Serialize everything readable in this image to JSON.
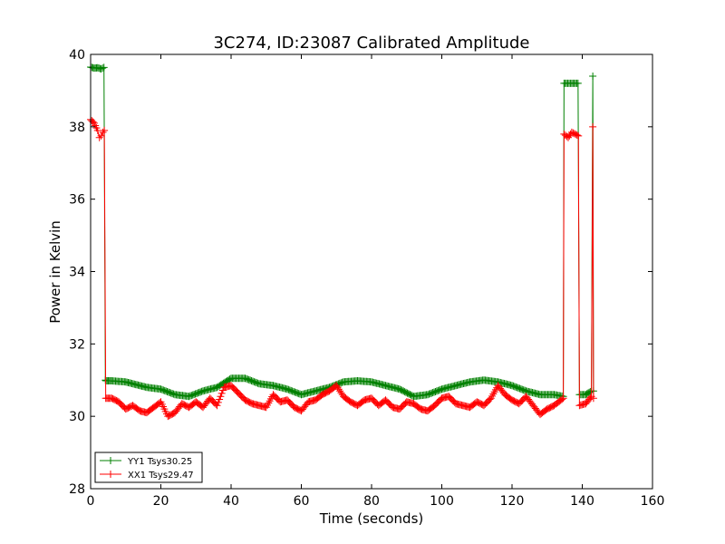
{
  "chart_data": {
    "type": "line",
    "title": "3C274, ID:23087 Calibrated Amplitude",
    "xlabel": "Time (seconds)",
    "ylabel": "Power in Kelvin",
    "xlim": [
      0,
      160
    ],
    "ylim": [
      28,
      40
    ],
    "xticks": [
      "0",
      "20",
      "40",
      "60",
      "80",
      "100",
      "120",
      "140",
      "160"
    ],
    "yticks": [
      "28",
      "30",
      "32",
      "34",
      "36",
      "38",
      "40"
    ],
    "grid": false,
    "legend_position": "bottom-left",
    "marker": "+",
    "series": [
      {
        "name": "YY1 Tsys30.25",
        "color": "#008000",
        "x": [
          0,
          1,
          2,
          3,
          3.8,
          4.2,
          4.4,
          6,
          10,
          16,
          20,
          24,
          28,
          32,
          36,
          40,
          44,
          48,
          52,
          56,
          60,
          64,
          68,
          72,
          76,
          80,
          84,
          88,
          92,
          96,
          100,
          104,
          108,
          112,
          116,
          120,
          124,
          128,
          132,
          134.6,
          134.8,
          135.5,
          137,
          138.8,
          139.2,
          141,
          142.6,
          143.0,
          143.2
        ],
        "y": [
          39.65,
          39.62,
          39.63,
          39.6,
          39.64,
          31.0,
          30.98,
          30.98,
          30.95,
          30.8,
          30.75,
          30.6,
          30.55,
          30.7,
          30.8,
          31.05,
          31.05,
          30.9,
          30.85,
          30.75,
          30.6,
          30.7,
          30.8,
          30.95,
          30.98,
          30.95,
          30.85,
          30.75,
          30.55,
          30.6,
          30.75,
          30.85,
          30.95,
          31.0,
          30.95,
          30.85,
          30.7,
          30.6,
          30.6,
          30.55,
          39.2,
          39.2,
          39.2,
          39.2,
          30.6,
          30.6,
          30.7,
          39.4,
          30.7
        ]
      },
      {
        "name": "XX1 Tsys29.47",
        "color": "#ff0000",
        "x": [
          0,
          1,
          2,
          2.5,
          3,
          3.5,
          3.9,
          4.3,
          6,
          8,
          10,
          12,
          14,
          16,
          18,
          20,
          22,
          24,
          26,
          28,
          30,
          32,
          34,
          36,
          38,
          40,
          42,
          44,
          46,
          48,
          50,
          52,
          54,
          56,
          58,
          60,
          62,
          64,
          66,
          68,
          70,
          72,
          74,
          76,
          78,
          80,
          82,
          84,
          86,
          88,
          90,
          92,
          94,
          96,
          98,
          100,
          102,
          104,
          106,
          108,
          110,
          112,
          114,
          116,
          118,
          120,
          122,
          124,
          126,
          128,
          130,
          132,
          134.6,
          134.8,
          136,
          137,
          138.9,
          139.2,
          141,
          142.6,
          143.0,
          143.2
        ],
        "y": [
          38.2,
          38.1,
          37.9,
          37.7,
          37.75,
          37.85,
          37.9,
          30.5,
          30.5,
          30.4,
          30.2,
          30.3,
          30.15,
          30.1,
          30.25,
          30.4,
          30.0,
          30.1,
          30.35,
          30.25,
          30.4,
          30.25,
          30.5,
          30.3,
          30.8,
          30.85,
          30.65,
          30.45,
          30.35,
          30.3,
          30.25,
          30.6,
          30.4,
          30.45,
          30.25,
          30.15,
          30.4,
          30.45,
          30.6,
          30.7,
          30.85,
          30.55,
          30.4,
          30.3,
          30.45,
          30.5,
          30.3,
          30.45,
          30.25,
          30.2,
          30.4,
          30.35,
          30.2,
          30.15,
          30.3,
          30.5,
          30.55,
          30.35,
          30.3,
          30.25,
          30.4,
          30.3,
          30.5,
          30.85,
          30.6,
          30.45,
          30.35,
          30.55,
          30.3,
          30.05,
          30.2,
          30.3,
          30.5,
          37.8,
          37.7,
          37.85,
          37.75,
          30.3,
          30.35,
          30.55,
          38.0,
          30.5
        ]
      }
    ]
  }
}
